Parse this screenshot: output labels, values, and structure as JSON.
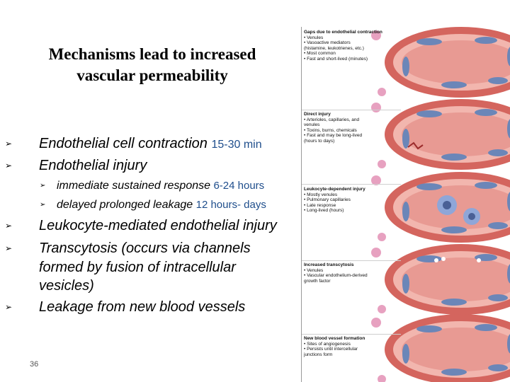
{
  "slide": {
    "title_line1": "Mechanisms lead to increased",
    "title_line2": "vascular permeability",
    "page_number": "36",
    "bullet_glyph": "➢"
  },
  "bullets": [
    {
      "text": "Endothelial cell contraction",
      "time": "15-30 min"
    },
    {
      "text": "Endothelial injury",
      "time": ""
    },
    {
      "text": "immediate sustained response",
      "time": "6-24 hours"
    },
    {
      "text": "delayed prolonged leakage",
      "time": "12 hours- days"
    },
    {
      "text": "Leukocyte-mediated endothelial injury",
      "time": ""
    },
    {
      "text": "Transcytosis  (occurs via channels",
      "time": ""
    },
    {
      "text": "formed by fusion of intracellular",
      "time": ""
    },
    {
      "text": "vesicles)",
      "time": ""
    },
    {
      "text": "Leakage from new blood vessels",
      "time": ""
    }
  ],
  "figure": {
    "colors": {
      "vessel": "#d4655e",
      "lumen": "#e89a93",
      "endothelium": "#f2b6ae",
      "nucleus": "#6b86b8",
      "leukocyte": "#8fa6d8",
      "pink": "#e7a1c0"
    },
    "panels": [
      {
        "heading": "Gaps due to endothelial contraction",
        "items": [
          "• Venules",
          "• Vasoactive mediators",
          "  (histamine, leukotrienes, etc.)",
          "• Most common",
          "• Fast and short-lived (minutes)"
        ]
      },
      {
        "heading": "Direct injury",
        "items": [
          "• Arterioles, capillaries, and",
          "  venules",
          "• Toxins, burns, chemicals",
          "• Fast and may be long-lived",
          "  (hours to days)"
        ]
      },
      {
        "heading": "Leukocyte-dependent injury",
        "items": [
          "• Mostly venules",
          "• Pulmonary capillaries",
          "• Late response",
          "• Long-lived (hours)"
        ]
      },
      {
        "heading": "Increased transcytosis",
        "items": [
          "• Venules",
          "• Vascular endothelium-derived",
          "  growth factor"
        ]
      },
      {
        "heading": "New blood vessel formation",
        "items": [
          "• Sites of angiogenesis",
          "• Persists until intercellular",
          "  junctions form"
        ]
      }
    ]
  }
}
